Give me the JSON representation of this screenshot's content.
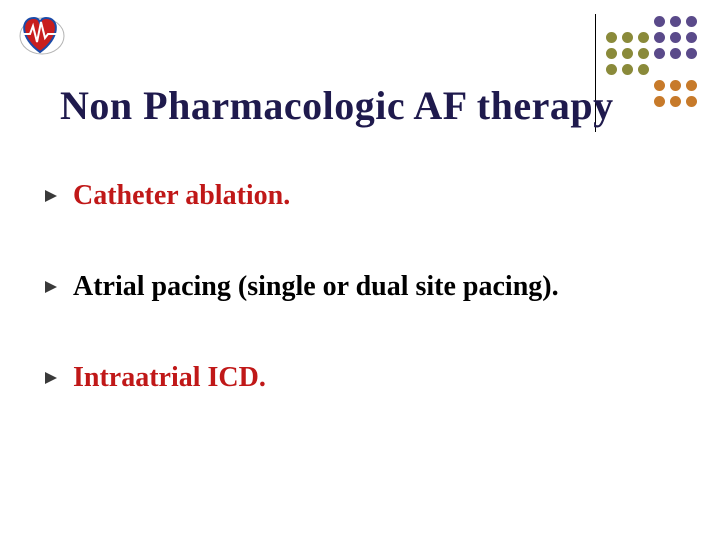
{
  "title": "Non Pharmacologic AF therapy",
  "title_color": "#1f1a4d",
  "title_fontsize": 40,
  "bullets": [
    {
      "text": "Catheter ablation.",
      "color": "#c01818"
    },
    {
      "text": "Atrial pacing (single or dual site pacing).",
      "color": "#000000"
    },
    {
      "text": "Intraatrial ICD.",
      "color": "#c01818"
    }
  ],
  "bullet_fontsize": 28,
  "bullet_marker_color": "#3a3a3a",
  "background_color": "#ffffff",
  "dot_grid": {
    "columns": 6,
    "rows": 6,
    "colors": {
      "purple": "#5a4a8a",
      "olive": "#8a8a3a",
      "orange": "#c77a2a"
    },
    "layout": [
      [
        null,
        null,
        null,
        "purple",
        "purple",
        "purple"
      ],
      [
        "olive",
        "olive",
        "olive",
        "purple",
        "purple",
        "purple"
      ],
      [
        "olive",
        "olive",
        "olive",
        "purple",
        "purple",
        "purple"
      ],
      [
        "olive",
        "olive",
        "olive",
        null,
        null,
        null
      ],
      [
        null,
        null,
        null,
        "orange",
        "orange",
        "orange"
      ],
      [
        null,
        null,
        null,
        "orange",
        "orange",
        "orange"
      ]
    ]
  },
  "logo": {
    "heart_fill": "#c81e1e",
    "heart_outline": "#1a4aa8",
    "ecg_color": "#ffffff",
    "shade_color": "#808080"
  }
}
